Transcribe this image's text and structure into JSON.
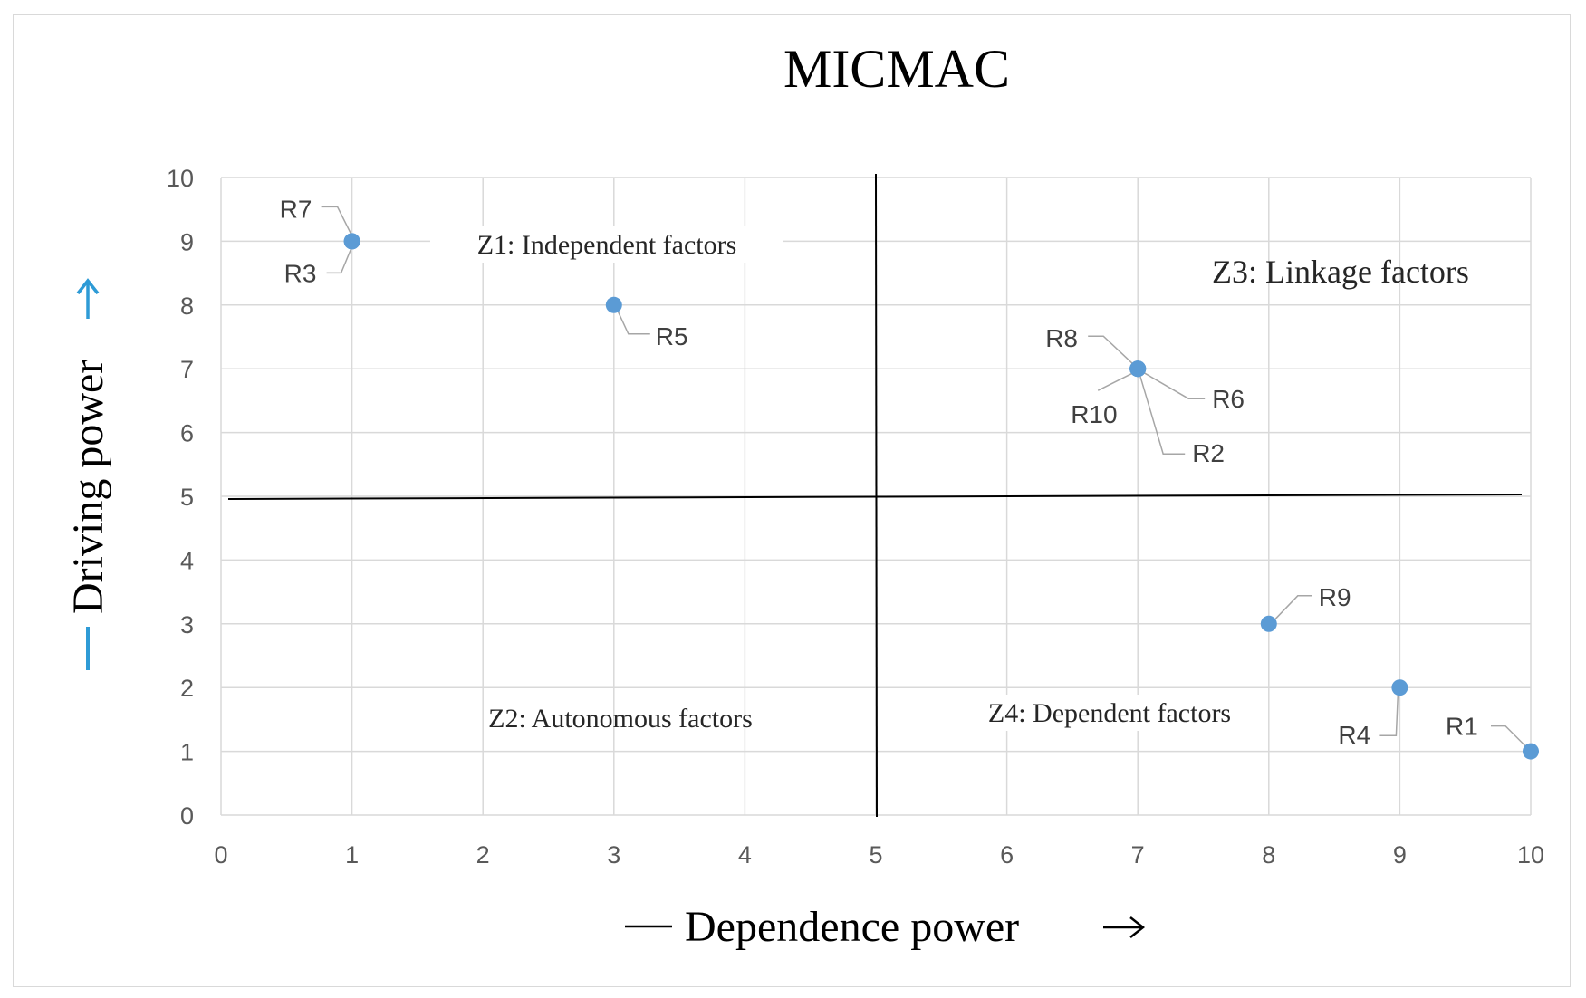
{
  "chart_data": {
    "type": "scatter",
    "title": "MICMAC",
    "xlabel": "Dependence power",
    "ylabel": "Driving power",
    "xlim": [
      0,
      10
    ],
    "ylim": [
      0,
      10
    ],
    "x_ticks": [
      "0",
      "1",
      "2",
      "3",
      "4",
      "5",
      "6",
      "7",
      "8",
      "9",
      "10"
    ],
    "y_ticks": [
      "0",
      "1",
      "2",
      "3",
      "4",
      "5",
      "6",
      "7",
      "8",
      "9",
      "10"
    ],
    "grid": true,
    "divider_x": 5,
    "divider_y": 5,
    "points": [
      {
        "label": "R1",
        "x": 10,
        "y": 1
      },
      {
        "label": "R2",
        "x": 7,
        "y": 7
      },
      {
        "label": "R3",
        "x": 1,
        "y": 9
      },
      {
        "label": "R4",
        "x": 9,
        "y": 2
      },
      {
        "label": "R5",
        "x": 3,
        "y": 8
      },
      {
        "label": "R6",
        "x": 7,
        "y": 7
      },
      {
        "label": "R7",
        "x": 1,
        "y": 9
      },
      {
        "label": "R8",
        "x": 7,
        "y": 7
      },
      {
        "label": "R9",
        "x": 8,
        "y": 3
      },
      {
        "label": "R10",
        "x": 7,
        "y": 7
      }
    ],
    "zones": [
      {
        "id": "z1",
        "text": "Z1: Independent factors"
      },
      {
        "id": "z2",
        "text": "Z2: Autonomous factors"
      },
      {
        "id": "z3",
        "text": "Z3: Linkage factors"
      },
      {
        "id": "z4",
        "text": "Z4: Dependent factors"
      }
    ]
  },
  "colors": {
    "point": "#5b9bd5",
    "grid": "#d9d9d9",
    "axis_arrow_y": "#2e9bd6",
    "divider": "#000000"
  }
}
